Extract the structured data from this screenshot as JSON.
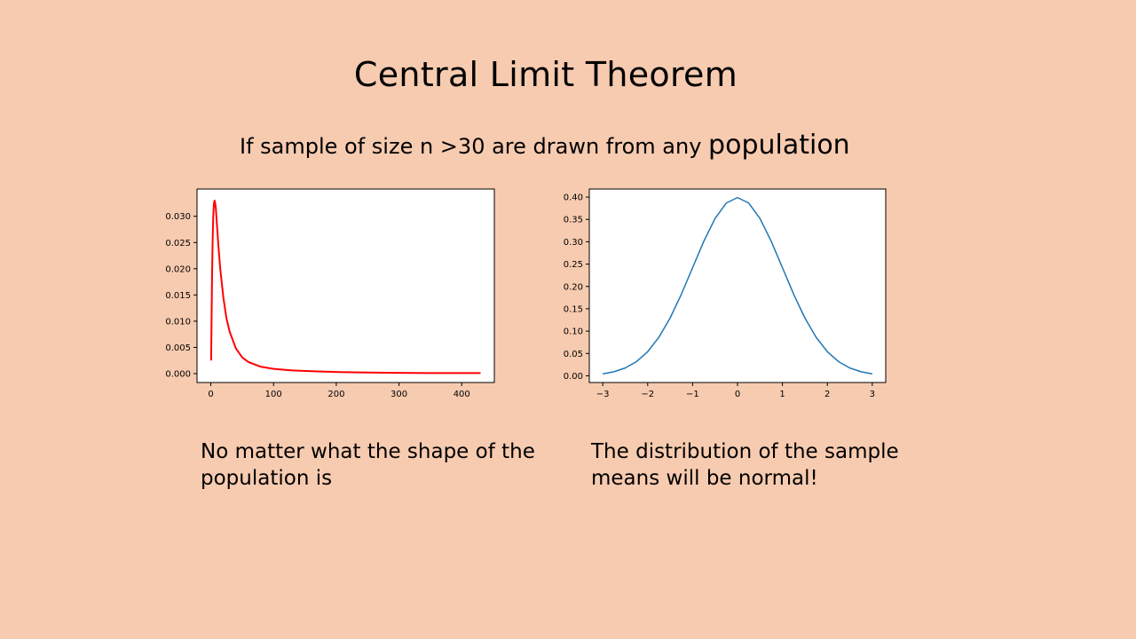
{
  "slide": {
    "title": "Central Limit Theorem",
    "subtitle_main": "If sample of size n >30 are drawn from any ",
    "subtitle_emph": "population",
    "caption_left": "No matter what the shape of the population is",
    "caption_right": "The distribution of the sample means will be normal!"
  },
  "colors": {
    "background": "#f7cbb0",
    "left_line": "#ff0000",
    "right_line": "#1f77b4"
  },
  "chart_data": [
    {
      "type": "line",
      "title": "",
      "xlabel": "",
      "ylabel": "",
      "xlim": [
        -22,
        452
      ],
      "ylim": [
        -0.0017,
        0.0352
      ],
      "xticks": [
        0,
        100,
        200,
        300,
        400
      ],
      "xtick_labels": [
        "0",
        "100",
        "200",
        "300",
        "400"
      ],
      "yticks": [
        0.0,
        0.005,
        0.01,
        0.015,
        0.02,
        0.025,
        0.03
      ],
      "ytick_labels": [
        "0.000",
        "0.005",
        "0.010",
        "0.015",
        "0.020",
        "0.025",
        "0.030"
      ],
      "grid": false,
      "series": [
        {
          "color": "#ff0000",
          "x": [
            0.5,
            1,
            2,
            3,
            4,
            5,
            6,
            7,
            8,
            10,
            12,
            15,
            20,
            25,
            30,
            40,
            50,
            60,
            80,
            100,
            130,
            160,
            200,
            250,
            300,
            350,
            400,
            430
          ],
          "y": [
            0.0025,
            0.008,
            0.019,
            0.026,
            0.0305,
            0.0325,
            0.033,
            0.0325,
            0.0315,
            0.028,
            0.0245,
            0.02,
            0.0145,
            0.0105,
            0.008,
            0.0048,
            0.0031,
            0.0022,
            0.0013,
            0.0009,
            0.0006,
            0.00045,
            0.0003,
            0.0002,
            0.00015,
            0.0001,
            0.0001,
            0.0001
          ]
        }
      ]
    },
    {
      "type": "line",
      "title": "",
      "xlabel": "",
      "ylabel": "",
      "xlim": [
        -3.3,
        3.3
      ],
      "ylim": [
        -0.015,
        0.418
      ],
      "xticks": [
        -3,
        -2,
        -1,
        0,
        1,
        2,
        3
      ],
      "xtick_labels": [
        "−3",
        "−2",
        "−1",
        "0",
        "1",
        "2",
        "3"
      ],
      "yticks": [
        0.0,
        0.05,
        0.1,
        0.15,
        0.2,
        0.25,
        0.3,
        0.35,
        0.4
      ],
      "ytick_labels": [
        "0.00",
        "0.05",
        "0.10",
        "0.15",
        "0.20",
        "0.25",
        "0.30",
        "0.35",
        "0.40"
      ],
      "grid": false,
      "series": [
        {
          "color": "#1f77b4",
          "x": [
            -3,
            -2.75,
            -2.5,
            -2.25,
            -2,
            -1.75,
            -1.5,
            -1.25,
            -1,
            -0.75,
            -0.5,
            -0.25,
            0,
            0.25,
            0.5,
            0.75,
            1,
            1.25,
            1.5,
            1.75,
            2,
            2.25,
            2.5,
            2.75,
            3
          ],
          "y": [
            0.0044,
            0.0091,
            0.0175,
            0.0317,
            0.054,
            0.0863,
            0.1295,
            0.1826,
            0.242,
            0.3011,
            0.3521,
            0.3867,
            0.3989,
            0.3867,
            0.3521,
            0.3011,
            0.242,
            0.1826,
            0.1295,
            0.0863,
            0.054,
            0.0317,
            0.0175,
            0.0091,
            0.0044
          ]
        }
      ]
    }
  ]
}
